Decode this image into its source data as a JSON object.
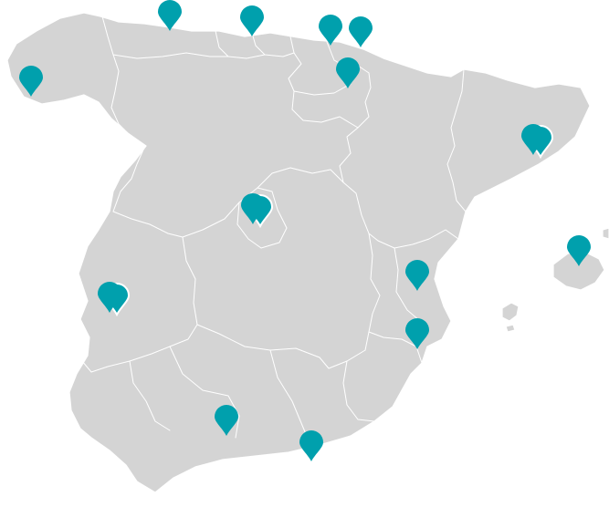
{
  "map": {
    "land_color": "#d4d4d4",
    "border_color": "#ffffff",
    "marker_color": "#00a0ad",
    "background_color": "#ffffff",
    "marker_icon": "location-pin-icon"
  },
  "markers": [
    {
      "id": "marker-galicia",
      "stacked": false
    },
    {
      "id": "marker-asturias",
      "stacked": false
    },
    {
      "id": "marker-cantabria",
      "stacked": false
    },
    {
      "id": "marker-bilbao",
      "stacked": false
    },
    {
      "id": "marker-san-sebastian",
      "stacked": false
    },
    {
      "id": "marker-vitoria",
      "stacked": false
    },
    {
      "id": "marker-barcelona",
      "stacked": true
    },
    {
      "id": "marker-madrid",
      "stacked": true
    },
    {
      "id": "marker-mallorca",
      "stacked": false
    },
    {
      "id": "marker-valencia",
      "stacked": false
    },
    {
      "id": "marker-extremadura",
      "stacked": true
    },
    {
      "id": "marker-alicante",
      "stacked": false
    },
    {
      "id": "marker-cordoba",
      "stacked": false
    },
    {
      "id": "marker-malaga",
      "stacked": false
    }
  ]
}
